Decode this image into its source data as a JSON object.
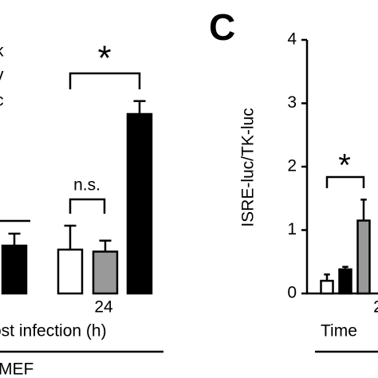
{
  "chart_data": [
    {
      "type": "bar",
      "legend_fragments": [
        "k",
        "v",
        "c"
      ],
      "values": [
        2.4,
        2.2,
        2.1,
        9
      ],
      "errors": [
        0.6,
        1.2,
        0.55,
        0.65
      ],
      "colors": [
        "#000000",
        "#ffffff",
        "#999999",
        "#000000"
      ],
      "ylim": [
        0,
        12
      ],
      "x_group_label": "24",
      "x_axis_label": "ost infection (h)",
      "cell_label": "MEF",
      "annotations": [
        "n.s.",
        "*"
      ]
    },
    {
      "type": "bar",
      "panel_label": "C",
      "y_label": "ISRE-luc/TK-luc",
      "values": [
        0.2,
        0.38,
        1.15
      ],
      "errors": [
        0.1,
        0.04,
        0.33
      ],
      "colors": [
        "#ffffff",
        "#000000",
        "#999999"
      ],
      "ylim": [
        0,
        4
      ],
      "yticks": [
        0,
        1,
        2,
        3,
        4
      ],
      "x_group_label": "2",
      "x_axis_label": "Time",
      "annotations": [
        "*"
      ]
    }
  ]
}
